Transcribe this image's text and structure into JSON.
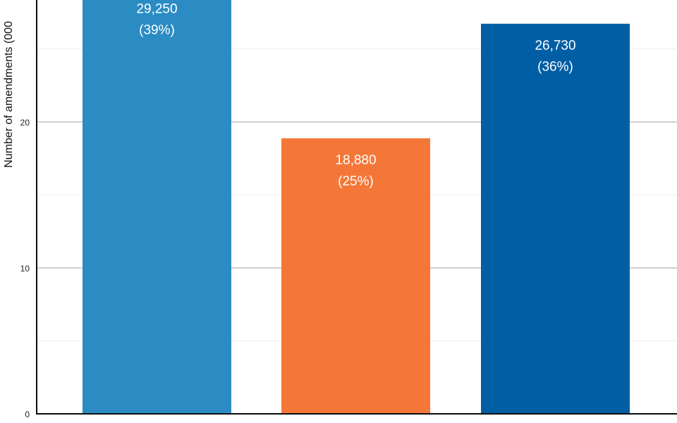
{
  "chart_data": {
    "type": "bar",
    "title": "",
    "xlabel": "",
    "ylabel": "Number of amendments (000",
    "categories": [
      "",
      "",
      ""
    ],
    "values": [
      29.25,
      18.88,
      26.73
    ],
    "data_labels": [
      {
        "value": "29,250",
        "percent": "(39%)"
      },
      {
        "value": "18,880",
        "percent": "(25%)"
      },
      {
        "value": "26,730",
        "percent": "(36%)"
      }
    ],
    "colors": [
      "#2b8cc4",
      "#f47738",
      "#005ea5"
    ],
    "ylim": [
      0,
      30
    ],
    "yticks": [
      0,
      10,
      20
    ],
    "minor_gridlines": [
      5,
      15,
      25
    ],
    "grid": true,
    "legend": "none"
  }
}
